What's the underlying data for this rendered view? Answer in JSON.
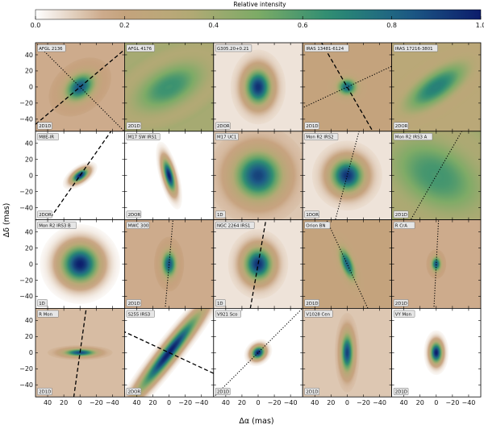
{
  "chart_data": {
    "type": "heatmap",
    "colorbar": {
      "title": "Relative intensity",
      "range": [
        0.0,
        1.0
      ],
      "ticks": [
        "0.0",
        "0.2",
        "0.4",
        "0.6",
        "0.8",
        "1.0"
      ],
      "colormap": [
        "#ffffff",
        "#c7a27f",
        "#b7a976",
        "#7cab66",
        "#2b8c73",
        "#1d5c86",
        "#0c1c6b"
      ]
    },
    "xlabel": "Δα (mas)",
    "ylabel": "Δδ (mas)",
    "xlim": [
      55,
      -55
    ],
    "ylim": [
      -55,
      55
    ],
    "xticks": [
      "40",
      "20",
      "0",
      "−20",
      "−40"
    ],
    "yticks": [
      "40",
      "20",
      "0",
      "−20",
      "−40"
    ],
    "grid": {
      "rows": 4,
      "cols": 5
    },
    "panels": [
      {
        "name": "AFGL 2136",
        "model": "2D1D",
        "sx": 14,
        "sy": 10,
        "pa": 40,
        "bg": 0.15,
        "lines": [
          {
            "style": "dashed",
            "angle": 40
          },
          {
            "style": "dotted",
            "angle": -45
          }
        ]
      },
      {
        "name": "AFGL 4176",
        "model": "2D1D",
        "sx": 30,
        "sy": 16,
        "pa": 28,
        "bg": 0.38,
        "lines": []
      },
      {
        "name": "G305.20+0.21",
        "model": "2DOR",
        "sx": 11,
        "sy": 15,
        "pa": 0,
        "bg": 0.05,
        "lines": []
      },
      {
        "name": "IRAS 13481-6124",
        "model": "2D1D",
        "sx": 8,
        "sy": 7,
        "pa": 0,
        "bg": 0.2,
        "lines": [
          {
            "style": "dashed",
            "angle": -60
          },
          {
            "style": "dotted",
            "angle": 25
          }
        ]
      },
      {
        "name": "IRAS 17216-3801",
        "model": "2DOR",
        "sx": 30,
        "sy": 12,
        "pa": 35,
        "bg": 0.3,
        "lines": []
      },
      {
        "name": "M8E-IR",
        "model": "2DOR",
        "sx": 8,
        "sy": 4,
        "pa": 35,
        "bg": 0.0,
        "lines": [
          {
            "style": "dashed",
            "angle": 55
          }
        ]
      },
      {
        "name": "M17 SW IRS1",
        "model": "2DOR",
        "sx": 4,
        "sy": 14,
        "pa": 15,
        "bg": 0.0,
        "lines": []
      },
      {
        "name": "M17 UC1",
        "model": "1D",
        "sx": 20,
        "sy": 20,
        "pa": 0,
        "bg": 0.1,
        "lines": []
      },
      {
        "name": "Mon R2 IRS2",
        "model": "1DOR",
        "sx": 14,
        "sy": 14,
        "pa": 0,
        "bg": 0.05,
        "lines": [
          {
            "style": "dotted",
            "angle": 75
          }
        ]
      },
      {
        "name": "Mon R2 IRS3 A",
        "model": "2D1D",
        "sx": 40,
        "sy": 26,
        "pa": -30,
        "bg": 0.4,
        "lines": [
          {
            "style": "dotted",
            "angle": 60
          }
        ]
      },
      {
        "name": "Mon R2 IRS3 B",
        "model": "1D",
        "sx": 16,
        "sy": 16,
        "pa": 0,
        "bg": 0.0,
        "lines": []
      },
      {
        "name": "MWC 300",
        "model": "2D1D",
        "sx": 6,
        "sy": 11,
        "pa": 0,
        "bg": 0.15,
        "lines": [
          {
            "style": "dotted",
            "angle": 85
          }
        ]
      },
      {
        "name": "NGC 2264 IRS1",
        "model": "1D",
        "sx": 12,
        "sy": 14,
        "pa": 0,
        "bg": 0.05,
        "lines": [
          {
            "style": "dashed",
            "angle": 80
          }
        ]
      },
      {
        "name": "Orion BN",
        "model": "2D1D",
        "sx": 5,
        "sy": 14,
        "pa": 20,
        "bg": 0.2,
        "lines": [
          {
            "style": "dotted",
            "angle": -65
          }
        ]
      },
      {
        "name": "R CrA",
        "model": "2D1D",
        "sx": 4,
        "sy": 6,
        "pa": 0,
        "bg": 0.15,
        "lines": [
          {
            "style": "dotted",
            "angle": 87
          }
        ]
      },
      {
        "name": "R Mon",
        "model": "2D1D",
        "sx": 13,
        "sy": 3,
        "pa": 0,
        "bg": 0.12,
        "lines": [
          {
            "style": "dashed",
            "angle": 82
          }
        ]
      },
      {
        "name": "S255 IRS3",
        "model": "2DOR",
        "sx": 42,
        "sy": 6,
        "pa": 52,
        "bg": 0.0,
        "lines": [
          {
            "style": "dashed",
            "angle": -25
          }
        ]
      },
      {
        "name": "V921 Sco",
        "model": "2D1D",
        "sx": 6,
        "sy": 5,
        "pa": 40,
        "bg": 0.0,
        "lines": [
          {
            "style": "dotted",
            "angle": 45
          }
        ]
      },
      {
        "name": "V1028 Cen",
        "model": "2D1D",
        "sx": 5,
        "sy": 16,
        "pa": 0,
        "bg": 0.1,
        "lines": []
      },
      {
        "name": "VY Mon",
        "model": "2D1D",
        "sx": 5,
        "sy": 9,
        "pa": 0,
        "bg": 0.0,
        "lines": []
      }
    ]
  }
}
